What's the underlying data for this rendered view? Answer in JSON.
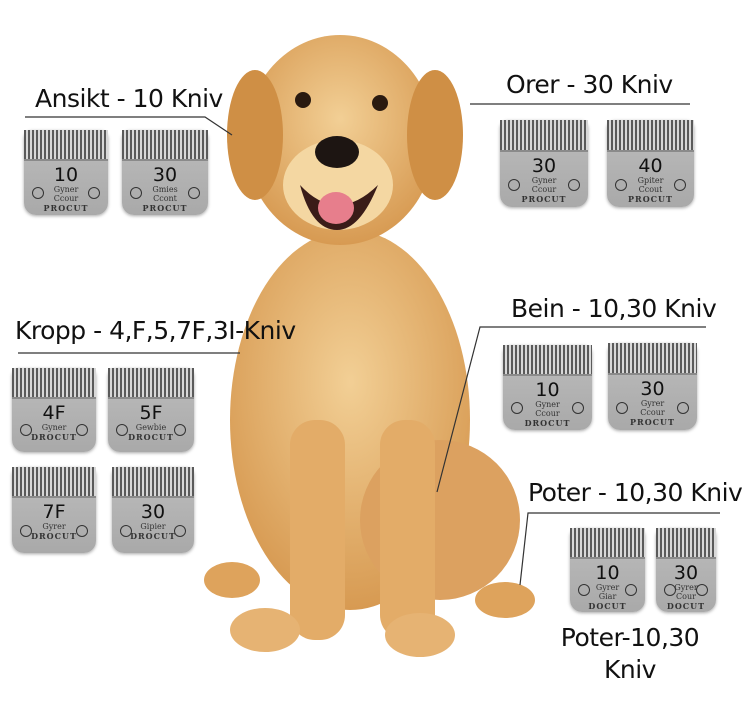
{
  "sections": [
    {
      "id": "face",
      "label": "Ansikt - 10 Kniv"
    },
    {
      "id": "ears",
      "label": "Orer - 30 Kniv"
    },
    {
      "id": "body",
      "label": "Kropp - 4,F,5,7F,3I-Kniv"
    },
    {
      "id": "legs",
      "label": "Bein - 10,30 Kniv"
    },
    {
      "id": "paws",
      "label": "Poter - 10,30 Kniv"
    }
  ],
  "bottom_label": {
    "line1": "Poter-10,30",
    "line2": "Kniv"
  },
  "blades": [
    {
      "section": "face",
      "number": "10",
      "line1": "Gyner",
      "line2": "Ccour",
      "brand": "PROCUT"
    },
    {
      "section": "face",
      "number": "30",
      "line1": "Gmies",
      "line2": "Ccont",
      "brand": "PROCUT"
    },
    {
      "section": "ears",
      "number": "30",
      "line1": "Gyner",
      "line2": "Ccour",
      "brand": "PROCUT"
    },
    {
      "section": "ears",
      "number": "40",
      "line1": "Gpiter",
      "line2": "Ccout",
      "brand": "PROCUT"
    },
    {
      "section": "body",
      "number": "4F",
      "line1": "Gyner",
      "line2": "",
      "brand": "DROCUT"
    },
    {
      "section": "body",
      "number": "5F",
      "line1": "Gewbie",
      "line2": "",
      "brand": "DROCUT"
    },
    {
      "section": "body",
      "number": "7F",
      "line1": "Gyrer",
      "line2": "",
      "brand": "DROCUT"
    },
    {
      "section": "body",
      "number": "30",
      "line1": "Gipier",
      "line2": "",
      "brand": "DROCUT"
    },
    {
      "section": "legs",
      "number": "10",
      "line1": "Gyner",
      "line2": "Ccour",
      "brand": "DROCUT"
    },
    {
      "section": "legs",
      "number": "30",
      "line1": "Gyrer",
      "line2": "Ccour",
      "brand": "PROCUT"
    },
    {
      "section": "paws",
      "number": "10",
      "line1": "Gyrer",
      "line2": "Giar",
      "brand": "DOCUT"
    },
    {
      "section": "paws",
      "number": "30",
      "line1": "Gyrer",
      "line2": "Cour",
      "brand": "DOCUT"
    }
  ],
  "colors": {
    "fur": "#dea35c",
    "fur_light": "#f0c98c",
    "blade": "#b3b3b3"
  }
}
